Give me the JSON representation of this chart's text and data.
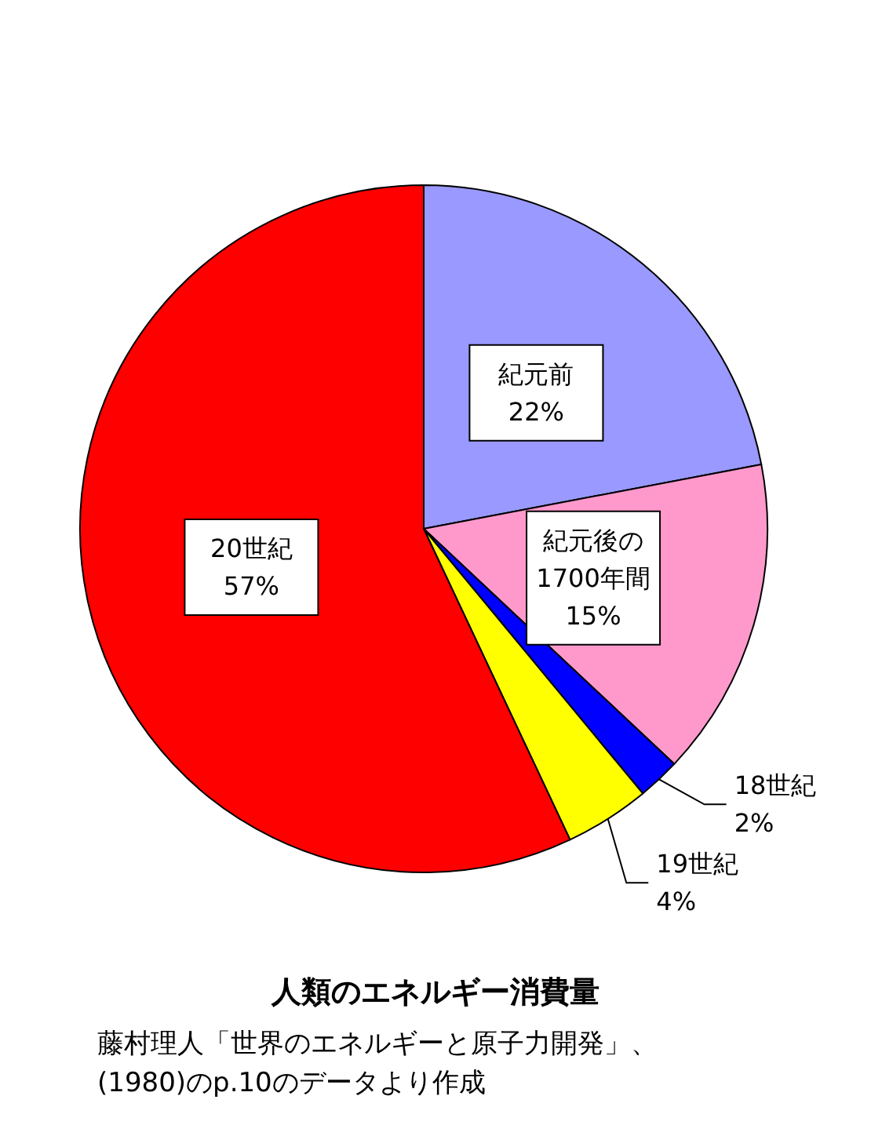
{
  "chart_data": {
    "type": "pie",
    "title": "人類のエネルギー消費量",
    "annotations": [
      "藤村理人「世界のエネルギーと原子力開発」、(1980)のp.10のデータより作成"
    ],
    "categories": [
      "紀元前",
      "紀元後の1700年間",
      "18世紀",
      "19世紀",
      "20世紀"
    ],
    "values": [
      22,
      15,
      2,
      4,
      57
    ],
    "value_labels": [
      "22%",
      "15%",
      "2%",
      "4%",
      "57%"
    ],
    "colors": [
      "#9999ff",
      "#ff99cc",
      "#0000ff",
      "#ffff00",
      "#ff0000"
    ]
  }
}
